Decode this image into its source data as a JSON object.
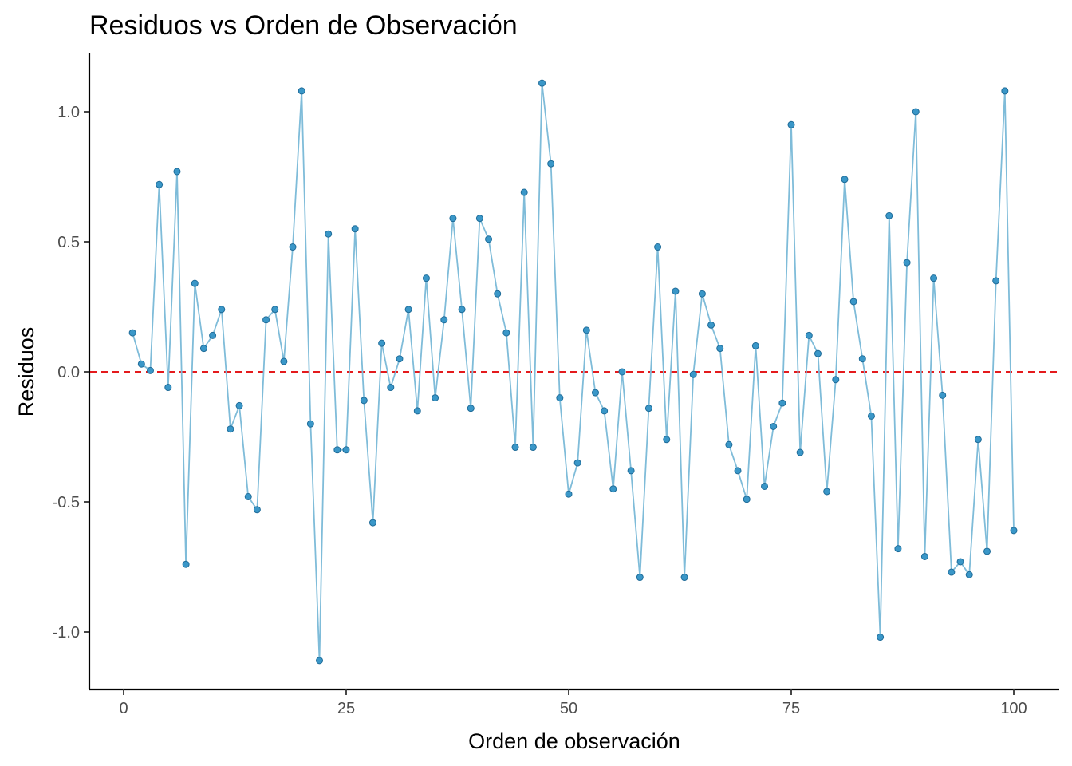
{
  "chart_data": {
    "type": "line",
    "title": "Residuos vs Orden de Observación",
    "xlabel": "Orden de observación",
    "ylabel": "Residuos",
    "xlim": [
      -2,
      103
    ],
    "ylim": [
      -1.22,
      1.22
    ],
    "x_ticks": [
      0,
      25,
      50,
      75,
      100
    ],
    "x_tick_labels": [
      "0",
      "25",
      "50",
      "75",
      "100"
    ],
    "y_ticks": [
      -1.0,
      -0.5,
      0.0,
      0.5,
      1.0
    ],
    "y_tick_labels": [
      "-1.0",
      "-0.5",
      "0.0",
      "0.5",
      "1.0"
    ],
    "grid": false,
    "reference_line": {
      "y": 0,
      "style": "dashed",
      "color": "#e41a1c"
    },
    "colors": {
      "line": "#7fbcd9",
      "point_fill": "#3a97c8",
      "point_stroke": "#1f6c99",
      "axis": "#000000"
    },
    "x": [
      1,
      2,
      3,
      4,
      5,
      6,
      7,
      8,
      9,
      10,
      11,
      12,
      13,
      14,
      15,
      16,
      17,
      18,
      19,
      20,
      21,
      22,
      23,
      24,
      25,
      26,
      27,
      28,
      29,
      30,
      31,
      32,
      33,
      34,
      35,
      36,
      37,
      38,
      39,
      40,
      41,
      42,
      43,
      44,
      45,
      46,
      47,
      48,
      49,
      50,
      51,
      52,
      53,
      54,
      55,
      56,
      57,
      58,
      59,
      60,
      61,
      62,
      63,
      64,
      65,
      66,
      67,
      68,
      69,
      70,
      71,
      72,
      73,
      74,
      75,
      76,
      77,
      78,
      79,
      80,
      81,
      82,
      83,
      84,
      85,
      86,
      87,
      88,
      89,
      90,
      91,
      92,
      93,
      94,
      95,
      96,
      97,
      98,
      99,
      100
    ],
    "series": [
      {
        "values": [
          0.15,
          0.03,
          0.005,
          0.72,
          -0.06,
          0.77,
          -0.74,
          0.34,
          0.09,
          0.14,
          0.24,
          -0.22,
          -0.13,
          -0.48,
          -0.53,
          0.2,
          0.24,
          0.04,
          0.48,
          1.08,
          -0.2,
          -1.11,
          0.53,
          -0.3,
          -0.3,
          0.55,
          -0.11,
          -0.58,
          0.11,
          -0.06,
          0.05,
          0.24,
          -0.15,
          0.36,
          -0.1,
          0.2,
          0.59,
          0.24,
          -0.14,
          0.59,
          0.51,
          0.3,
          0.15,
          -0.29,
          0.69,
          -0.29,
          1.11,
          0.8,
          -0.1,
          -0.47,
          -0.35,
          0.16,
          -0.08,
          -0.15,
          -0.45,
          0.0,
          -0.38,
          -0.79,
          -0.14,
          0.48,
          -0.26,
          0.31,
          -0.79,
          -0.01,
          0.3,
          0.18,
          0.09,
          -0.28,
          -0.38,
          -0.49,
          0.1,
          -0.44,
          -0.21,
          -0.12,
          0.95,
          -0.31,
          0.14,
          0.07,
          -0.46,
          -0.03,
          0.74,
          0.27,
          0.05,
          -0.17,
          -1.02,
          0.6,
          -0.68,
          0.42,
          1.0,
          -0.71,
          0.36,
          -0.09,
          -0.77,
          -0.73,
          -0.78,
          -0.26,
          -0.69,
          0.35,
          1.08,
          -0.61
        ]
      }
    ]
  }
}
